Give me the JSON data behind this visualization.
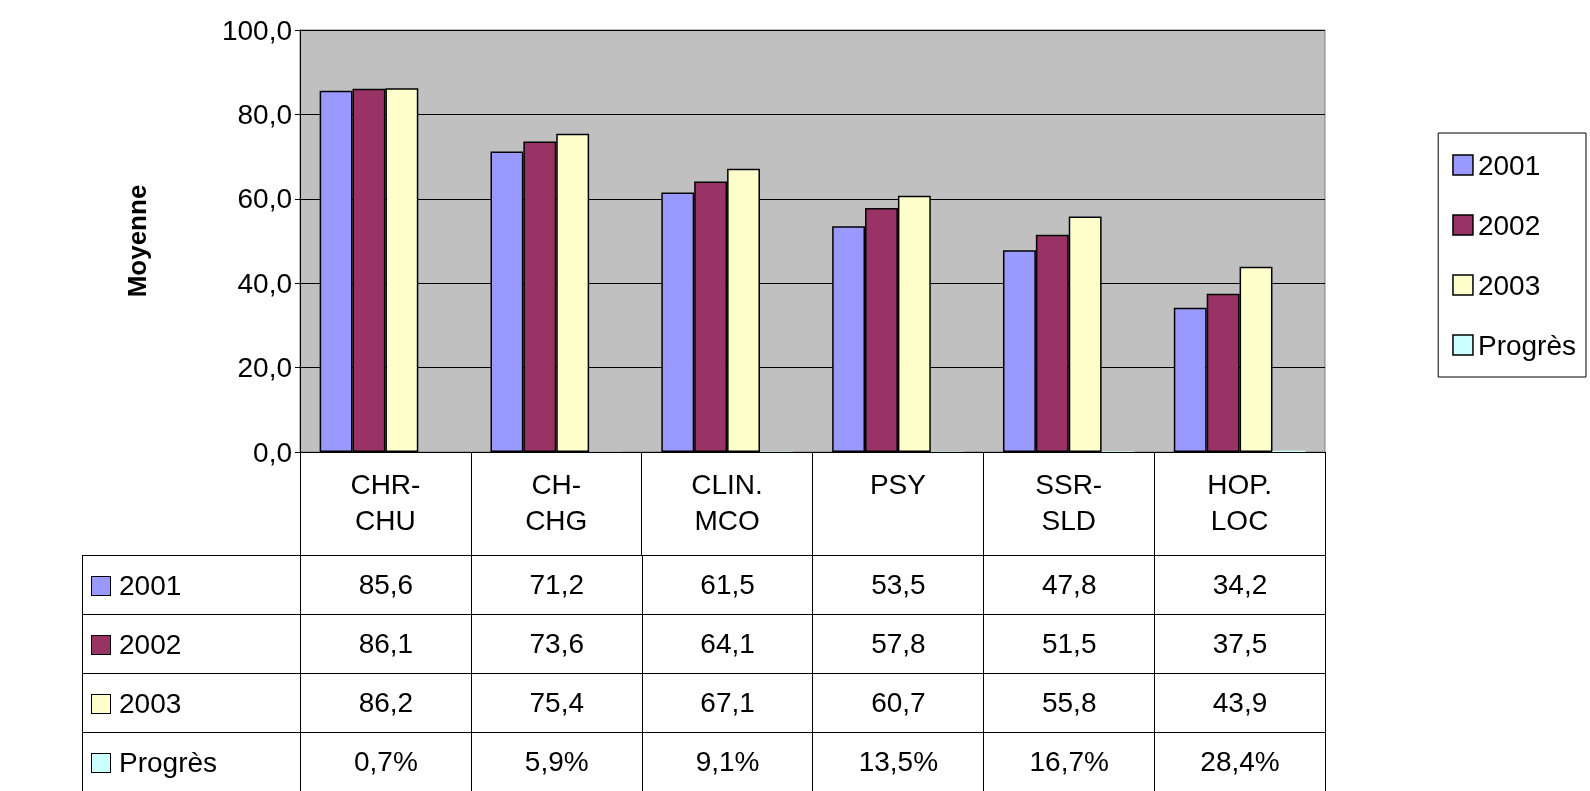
{
  "chart_data": {
    "type": "bar",
    "ylabel": "Moyenne",
    "categories": [
      "CHR-CHU",
      "CH-CHG",
      "CLIN. MCO",
      "PSY",
      "SSR-SLD",
      "HOP. LOC"
    ],
    "series": [
      {
        "name": "2001",
        "color": "#9999ff",
        "values": [
          85.6,
          71.2,
          61.5,
          53.5,
          47.8,
          34.2
        ],
        "value_labels": [
          "85,6",
          "71,2",
          "61,5",
          "53,5",
          "47,8",
          "34,2"
        ]
      },
      {
        "name": "2002",
        "color": "#993366",
        "values": [
          86.1,
          73.6,
          64.1,
          57.8,
          51.5,
          37.5
        ],
        "value_labels": [
          "86,1",
          "73,6",
          "64,1",
          "57,8",
          "51,5",
          "37,5"
        ]
      },
      {
        "name": "2003",
        "color": "#ffffcc",
        "values": [
          86.2,
          75.4,
          67.1,
          60.7,
          55.8,
          43.9
        ],
        "value_labels": [
          "86,2",
          "75,4",
          "67,1",
          "60,7",
          "55,8",
          "43,9"
        ]
      },
      {
        "name": "Progrès",
        "color": "#ccffff",
        "values": [
          0.007,
          0.059,
          0.091,
          0.135,
          0.167,
          0.284
        ],
        "value_labels": [
          "0,7%",
          "5,9%",
          "9,1%",
          "13,5%",
          "16,7%",
          "28,4%"
        ]
      }
    ],
    "ylim": [
      0,
      100
    ],
    "yticks": [
      {
        "value": 0,
        "label": "0,0"
      },
      {
        "value": 20,
        "label": "20,0"
      },
      {
        "value": 40,
        "label": "40,0"
      },
      {
        "value": 60,
        "label": "60,0"
      },
      {
        "value": 80,
        "label": "80,0"
      },
      {
        "value": 100,
        "label": "100,0"
      }
    ],
    "grid": "y",
    "legend": "right"
  }
}
